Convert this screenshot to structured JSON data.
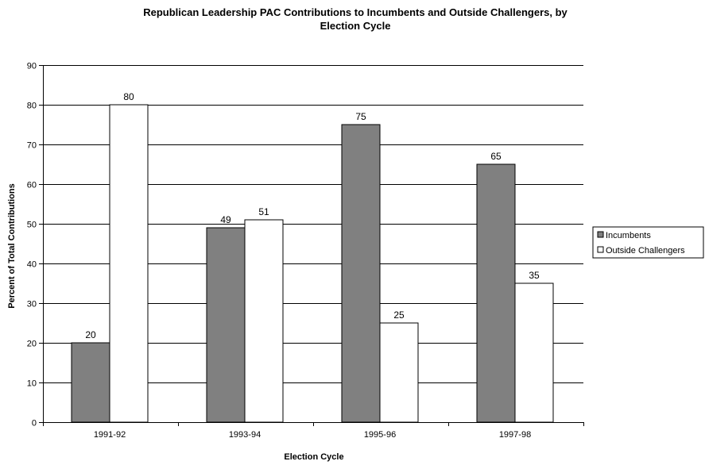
{
  "chart_data": {
    "type": "bar",
    "title_lines": [
      "Republican Leadership PAC Contributions to Incumbents and Outside Challengers, by",
      "Election Cycle"
    ],
    "xlabel": "Election Cycle",
    "ylabel": "Percent of Total Contributions",
    "categories": [
      "1991-92",
      "1993-94",
      "1995-96",
      "1997-98"
    ],
    "series": [
      {
        "name": "Incumbents",
        "values": [
          20,
          49,
          75,
          65
        ],
        "color": "#808080"
      },
      {
        "name": "Outside Challengers",
        "values": [
          80,
          51,
          25,
          35
        ],
        "color": "#ffffff"
      }
    ],
    "ylim": [
      0,
      90
    ],
    "yticks": [
      0,
      10,
      20,
      30,
      40,
      50,
      60,
      70,
      80,
      90
    ],
    "grid": true,
    "legend_position": "right",
    "data_labels": true,
    "bar_outline_color": "#000000"
  }
}
